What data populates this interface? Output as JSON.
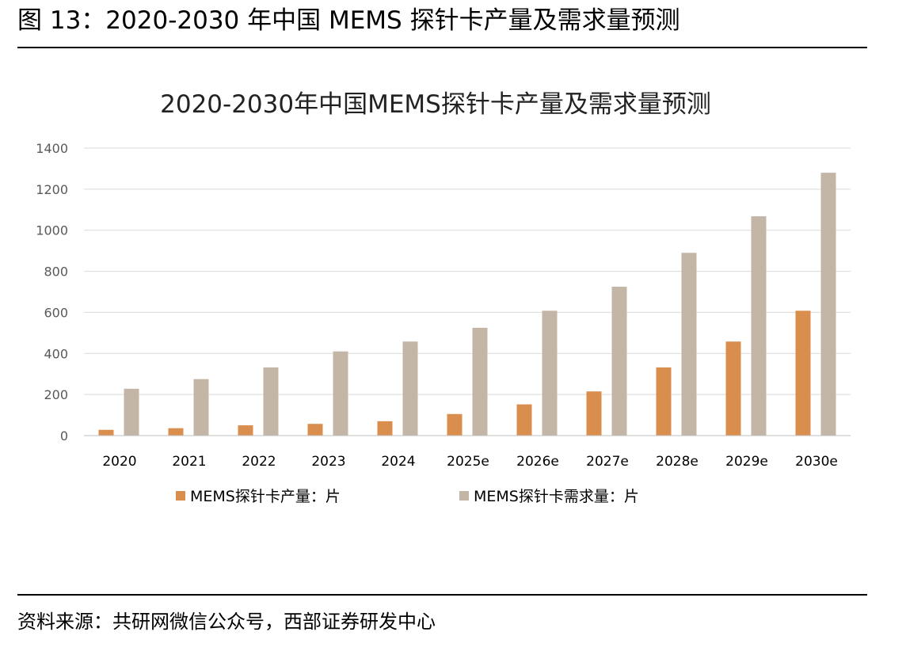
{
  "figure": {
    "caption": "图 13：2020-2030 年中国 MEMS 探针卡产量及需求量预测",
    "source": "资料来源：共研网微信公众号，西部证券研发中心"
  },
  "chart_data": {
    "type": "bar",
    "title": "2020-2030年中国MEMS探针卡产量及需求量预测",
    "xlabel": "",
    "ylabel": "",
    "categories": [
      "2020",
      "2021",
      "2022",
      "2023",
      "2024",
      "2025e",
      "2026e",
      "2027e",
      "2028e",
      "2029e",
      "2030e"
    ],
    "yticks": [
      "0",
      "200",
      "400",
      "600",
      "800",
      "1000",
      "1200",
      "1400"
    ],
    "ylim": [
      0,
      1400
    ],
    "grid": true,
    "legend_position": "bottom",
    "series": [
      {
        "name": "MEMS探针卡产量：片",
        "color": "#D98E4E",
        "values": [
          28,
          36,
          50,
          57,
          70,
          105,
          152,
          215,
          332,
          458,
          608
        ]
      },
      {
        "name": "MEMS探针卡需求量：片",
        "color": "#C4B6A6",
        "values": [
          228,
          275,
          332,
          410,
          458,
          525,
          608,
          725,
          890,
          1068,
          1280
        ]
      }
    ]
  }
}
